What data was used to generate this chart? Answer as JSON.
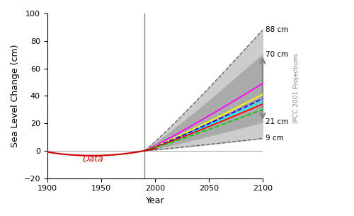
{
  "title": "",
  "xlabel": "Year",
  "ylabel": "Sea Level Change (cm)",
  "xlim": [
    1900,
    2100
  ],
  "ylim": [
    -20,
    100
  ],
  "vline_x": 1990,
  "hline_y": 0,
  "obs_start_year": 1900,
  "obs_end_year": 2001,
  "proj_start_year": 1990,
  "proj_end_year": 2100,
  "scenario_colors": [
    "magenta",
    "yellow",
    "cyan",
    "blue",
    "red",
    "#00cc00"
  ],
  "scenario_end_vals": [
    49,
    41,
    36,
    38,
    34,
    30
  ],
  "scenario_dashed": [
    false,
    false,
    false,
    true,
    false,
    true
  ],
  "annotation_88": "88 cm",
  "annotation_70": "70 cm",
  "annotation_21": "21 cm",
  "annotation_9": "9 cm",
  "data_label": "Data",
  "ipcc_label": "IPCC 2001 Projections",
  "obs_color": "#cc0000",
  "obs_noise_color": "#ff9999",
  "gray_fill_outer": "#cccccc",
  "gray_fill_inner": "#aaaaaa",
  "vline_color": "#888888",
  "dashed_env_color": "#666666",
  "xticks": [
    1900,
    1950,
    2000,
    2050,
    2100
  ],
  "yticks": [
    -20,
    0,
    20,
    40,
    60,
    80,
    100
  ]
}
